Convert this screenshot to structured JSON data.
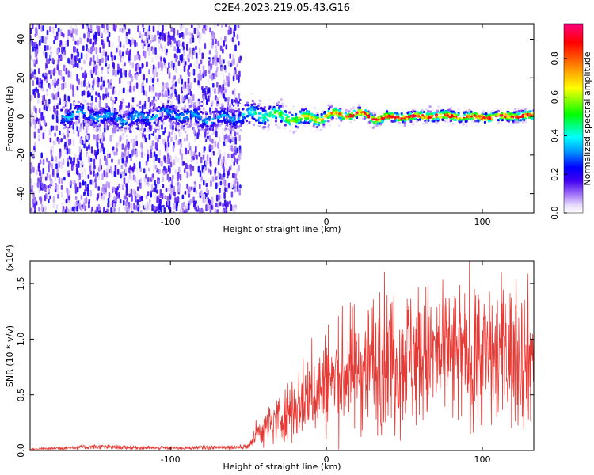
{
  "title": "C2E4.2023.219.05.43.G16",
  "chart_data": [
    {
      "type": "heatmap",
      "xlabel": "Height of straight line (km)",
      "ylabel": "Frequency (Hz)",
      "xlim": [
        -190,
        133
      ],
      "ylim": [
        -50,
        48
      ],
      "x_ticks": [
        -100,
        0,
        100
      ],
      "y_ticks": [
        -40,
        -20,
        0,
        20,
        40
      ],
      "colorbar": {
        "label": "Normalized spectral amplitude",
        "ticks": [
          "0.0",
          "0.2",
          "0.4",
          "0.6",
          "0.8"
        ],
        "range": [
          0,
          0.98
        ],
        "colormap": [
          "#ffffff",
          "#d8c8f8",
          "#8030f0",
          "#4000f0",
          "#0000ff",
          "#00a0ff",
          "#00ffff",
          "#00ff00",
          "#ffff00",
          "#ff8000",
          "#ff0000",
          "#ff0080"
        ]
      },
      "regions": [
        {
          "x_range": [
            -190,
            -55
          ],
          "description_level": "broadband noise, amplitude ~0.1-0.3"
        },
        {
          "x_range": [
            -55,
            133
          ],
          "center_frequency": 0,
          "peak_amplitude": 0.9
        }
      ]
    },
    {
      "type": "line",
      "xlabel": "Height of straight line (km)",
      "ylabel": "SNR (10 * v/v)",
      "y_multiplier": "(x10⁴)",
      "xlim": [
        -190,
        133
      ],
      "ylim": [
        0,
        1.7
      ],
      "x_ticks": [
        -100,
        0,
        100
      ],
      "y_ticks": [
        "0.0",
        "0.5",
        "1.0",
        "1.5"
      ],
      "color": "#e83a35",
      "envelope": [
        {
          "x": -190,
          "y": 0.01
        },
        {
          "x": -150,
          "y": 0.03
        },
        {
          "x": -100,
          "y": 0.02
        },
        {
          "x": -50,
          "y": 0.03
        },
        {
          "x": -45,
          "y": 0.15
        },
        {
          "x": -30,
          "y": 0.3
        },
        {
          "x": -15,
          "y": 0.45
        },
        {
          "x": 0,
          "y": 0.6
        },
        {
          "x": 20,
          "y": 0.75
        },
        {
          "x": 40,
          "y": 0.85
        },
        {
          "x": 60,
          "y": 0.85
        },
        {
          "x": 80,
          "y": 0.85
        },
        {
          "x": 100,
          "y": 0.85
        },
        {
          "x": 120,
          "y": 0.85
        },
        {
          "x": 133,
          "y": 0.85
        }
      ]
    }
  ]
}
